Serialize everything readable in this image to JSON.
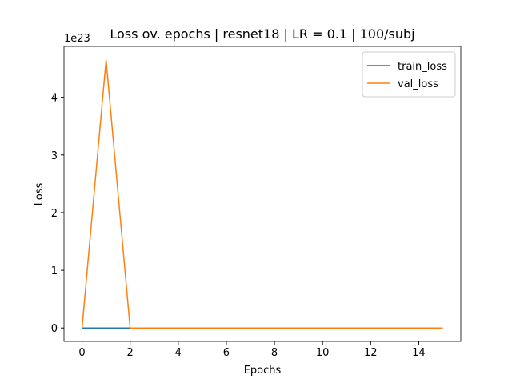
{
  "chart_data": {
    "type": "line",
    "title": "Loss ov. epochs | resnet18 | LR = 0.1 | 100/subj",
    "x_label": "Epochs",
    "y_label": "Loss",
    "y_offset_text": "1e23",
    "x": [
      0,
      1,
      2,
      3,
      4,
      5,
      6,
      7,
      8,
      9,
      10,
      11,
      12,
      13,
      14,
      15
    ],
    "series": [
      {
        "name": "train_loss",
        "color": "#1f77b4",
        "values": [
          0,
          0,
          0,
          0,
          0,
          0,
          0,
          0,
          0,
          0,
          0,
          0,
          0,
          0,
          0,
          0
        ]
      },
      {
        "name": "val_loss",
        "color": "#ff7f0e",
        "values": [
          0,
          4.65,
          0,
          0,
          0,
          0,
          0,
          0,
          0,
          0,
          0,
          0,
          0,
          0,
          0,
          0
        ]
      }
    ],
    "xlim": [
      -0.75,
      15.75
    ],
    "xticks": [
      0,
      2,
      4,
      6,
      8,
      10,
      12,
      14
    ],
    "ylim": [
      -0.2325,
      4.8825
    ],
    "yticks": [
      0,
      1,
      2,
      3,
      4
    ],
    "legend": "upper right",
    "grid": false
  }
}
